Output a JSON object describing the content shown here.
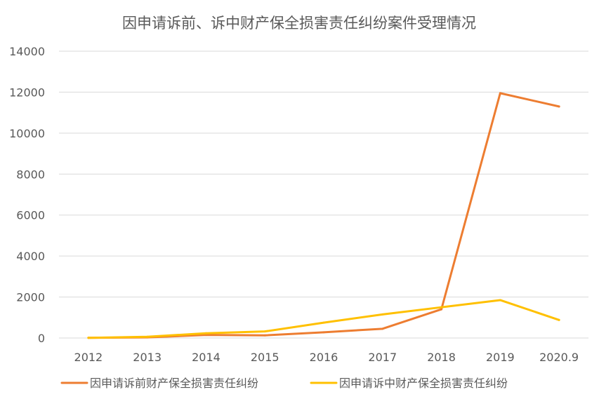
{
  "chart_data": {
    "type": "line",
    "title": "因申请诉前、诉中财产保全损害责任纠纷案件受理情况",
    "xlabel": "",
    "ylabel": "",
    "categories": [
      "2012",
      "2013",
      "2014",
      "2015",
      "2016",
      "2017",
      "2018",
      "2019",
      "2020.9"
    ],
    "y_ticks": [
      "0",
      "2000",
      "4000",
      "6000",
      "8000",
      "10000",
      "12000",
      "14000"
    ],
    "ylim": [
      0,
      14000
    ],
    "grid": true,
    "legend_position": "bottom",
    "series": [
      {
        "name": "因申请诉前财产保全损害责任纠纷",
        "color": "#ED7D31",
        "values": [
          10,
          30,
          150,
          130,
          280,
          450,
          1400,
          11950,
          11300
        ]
      },
      {
        "name": "因申请诉中财产保全损害责任纠纷",
        "color": "#FFC000",
        "values": [
          10,
          60,
          230,
          320,
          750,
          1150,
          1500,
          1850,
          880
        ]
      }
    ]
  }
}
